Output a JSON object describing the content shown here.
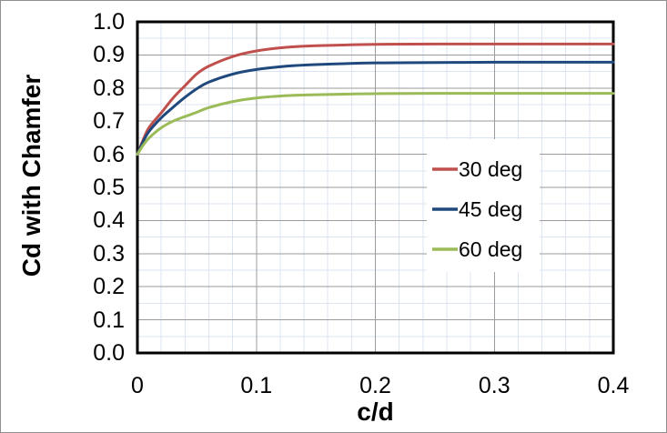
{
  "chart_data": {
    "type": "line",
    "title": "",
    "xlabel": "c/d",
    "ylabel": "Cd with Chamfer",
    "xlim": [
      0,
      0.4
    ],
    "ylim": [
      0.0,
      1.0
    ],
    "grid": {
      "on": true,
      "x_major_step": 0.1,
      "x_minor_step": 0.02,
      "y_major_step": 0.1,
      "y_minor_step": 0.05,
      "major_color": "#9b9b9b",
      "minor_color": "#dbe4f0"
    },
    "x_ticks": [
      {
        "label": "0",
        "value": 0.0
      },
      {
        "label": "0.1",
        "value": 0.1
      },
      {
        "label": "0.2",
        "value": 0.2
      },
      {
        "label": "0.3",
        "value": 0.3
      },
      {
        "label": "0.4",
        "value": 0.4
      }
    ],
    "y_ticks": [
      {
        "label": "1.0",
        "value": 1.0
      },
      {
        "label": "0.9",
        "value": 0.9
      },
      {
        "label": "0.8",
        "value": 0.8
      },
      {
        "label": "0.7",
        "value": 0.7
      },
      {
        "label": "0.6",
        "value": 0.6
      },
      {
        "label": "0.5",
        "value": 0.5
      },
      {
        "label": "0.4",
        "value": 0.4
      },
      {
        "label": "0.3",
        "value": 0.3
      },
      {
        "label": "0.2",
        "value": 0.2
      },
      {
        "label": "0.1",
        "value": 0.1
      },
      {
        "label": "0.0",
        "value": 0.0
      }
    ],
    "x": [
      0,
      0.005,
      0.01,
      0.02,
      0.03,
      0.04,
      0.05,
      0.06,
      0.08,
      0.1,
      0.125,
      0.15,
      0.2,
      0.25,
      0.3,
      0.35,
      0.4
    ],
    "series": [
      {
        "name": "30 deg",
        "color": "#c0504d",
        "asymptote": 0.933,
        "values": [
          0.6,
          0.645,
          0.682,
          0.725,
          0.77,
          0.807,
          0.843,
          0.866,
          0.895,
          0.912,
          0.923,
          0.928,
          0.932,
          0.933,
          0.933,
          0.933,
          0.933
        ]
      },
      {
        "name": "45 deg",
        "color": "#1f497d",
        "asymptote": 0.878,
        "values": [
          0.6,
          0.64,
          0.67,
          0.71,
          0.742,
          0.772,
          0.798,
          0.818,
          0.842,
          0.856,
          0.866,
          0.871,
          0.876,
          0.877,
          0.878,
          0.878,
          0.878
        ]
      },
      {
        "name": "60 deg",
        "color": "#9bbb59",
        "asymptote": 0.784,
        "values": [
          0.6,
          0.628,
          0.65,
          0.68,
          0.7,
          0.714,
          0.727,
          0.741,
          0.759,
          0.77,
          0.777,
          0.78,
          0.783,
          0.784,
          0.784,
          0.784,
          0.784
        ]
      }
    ],
    "legend": {
      "position": "middle-right",
      "entries": [
        "30 deg",
        "45 deg",
        "60 deg"
      ]
    }
  },
  "colors": {
    "background": "#ffffff",
    "plot_border": "#000000",
    "outer_border": "#8f8f8f",
    "text": "#000000",
    "legend_background": "#ffffff"
  }
}
